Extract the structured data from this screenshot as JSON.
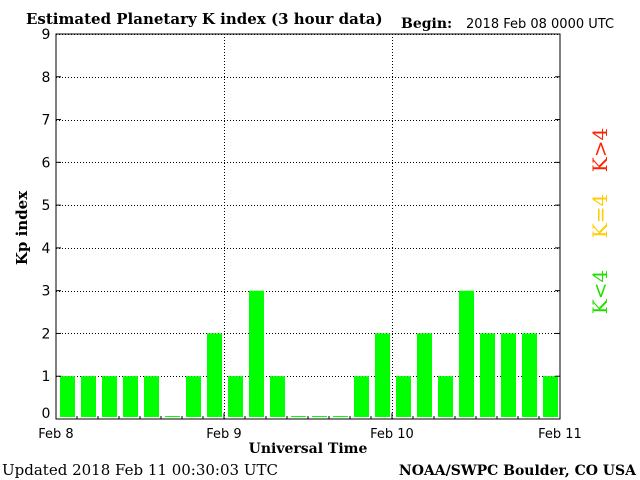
{
  "chart_data": {
    "type": "bar",
    "title": "Estimated Planetary K index (3 hour data)",
    "begin_label": "Begin:",
    "begin_value": "2018 Feb 08 0000 UTC",
    "xlabel": "Universal Time",
    "ylabel": "Kp index",
    "ylim": [
      0,
      9
    ],
    "yticks": [
      "0",
      "1",
      "2",
      "3",
      "4",
      "5",
      "6",
      "7",
      "8",
      "9"
    ],
    "xticks": [
      "Feb 8",
      "Feb 9",
      "Feb 10",
      "Feb 11"
    ],
    "grid": true,
    "values": [
      1,
      1,
      1,
      1,
      1,
      0,
      1,
      2,
      1,
      3,
      1,
      0,
      0,
      0,
      1,
      2,
      1,
      2,
      1,
      3,
      2,
      2,
      2,
      1
    ],
    "bar_color": "#00ff00",
    "legend": [
      {
        "label": "K>4",
        "color": "#ff2200"
      },
      {
        "label": "K=4",
        "color": "#ffcc00"
      },
      {
        "label": "K<4",
        "color": "#22dd00"
      }
    ]
  },
  "footer": {
    "updated": "Updated 2018 Feb 11 00:30:03 UTC",
    "source": "NOAA/SWPC Boulder, CO USA"
  }
}
